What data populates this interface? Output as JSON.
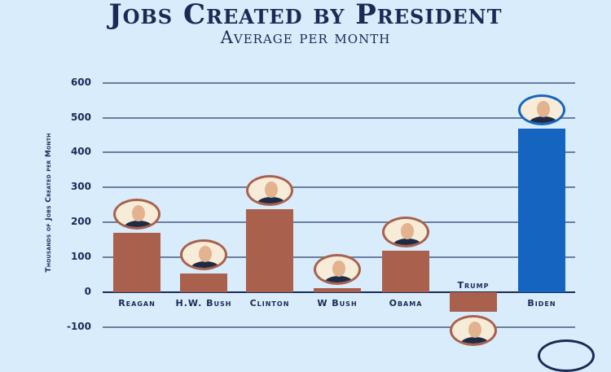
{
  "chart_data": {
    "type": "bar",
    "title": "Jobs Created by President",
    "subtitle": "Average per month",
    "xlabel": "",
    "ylabel": "Thousands of Jobs Created per Month",
    "ylim": [
      -100,
      600
    ],
    "yticks": [
      "600",
      "500",
      "400",
      "300",
      "200",
      "100",
      "0",
      "-100"
    ],
    "grid": true,
    "categories": [
      "Reagan",
      "H.W. Bush",
      "Clinton",
      "W Bush",
      "Obama",
      "Trump",
      "Biden"
    ],
    "values": [
      170,
      54,
      237,
      12,
      119,
      -56,
      468
    ],
    "colors": [
      "#a9604d",
      "#a9604d",
      "#a9604d",
      "#a9604d",
      "#a9604d",
      "#a9604d",
      "#1565c0"
    ]
  },
  "colors": {
    "background": "#d8ecfb",
    "text": "#1a2a55",
    "bar_default": "#a9604d",
    "bar_highlight": "#1565c0"
  }
}
